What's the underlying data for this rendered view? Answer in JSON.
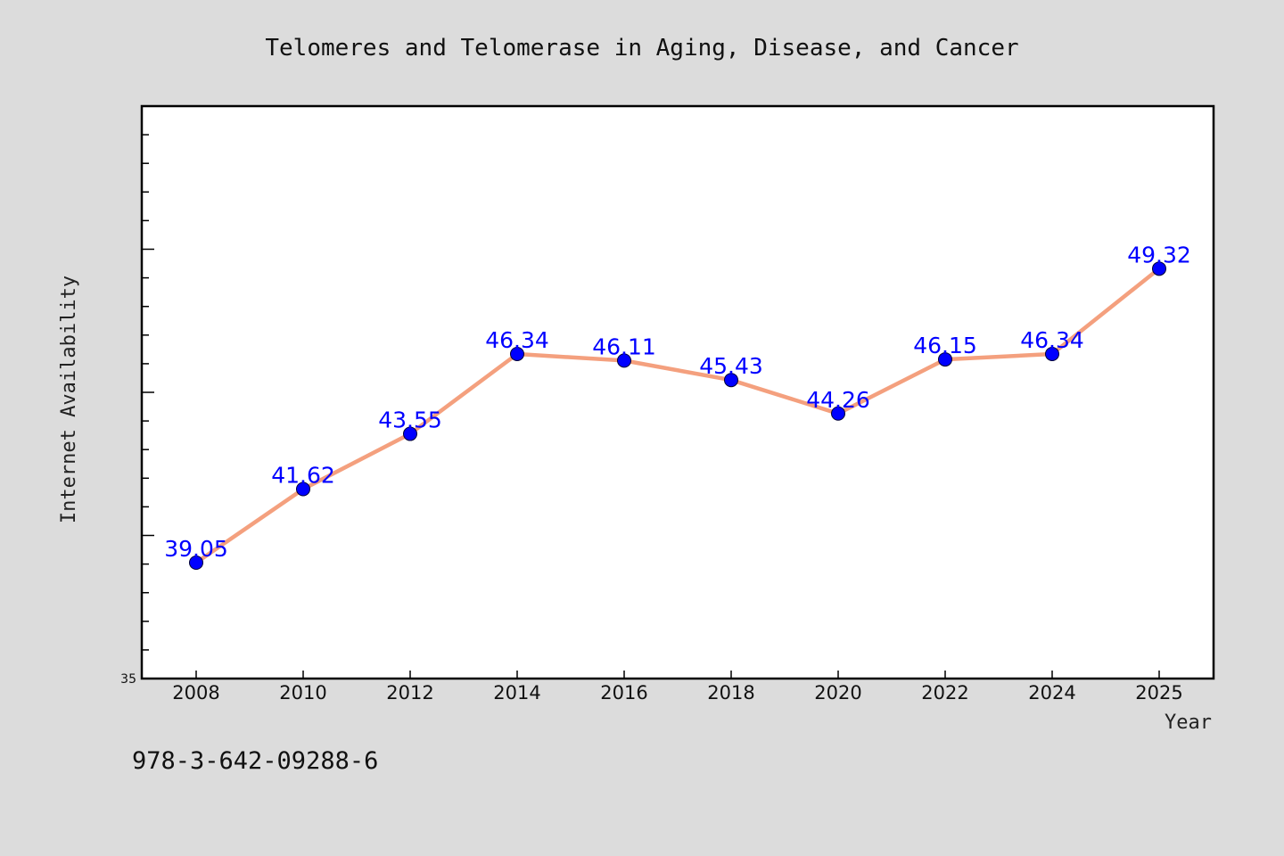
{
  "chart_data": {
    "type": "line",
    "title": "Telomeres and Telomerase in Aging, Disease, and Cancer",
    "xlabel": "Year",
    "ylabel": "Internet Availability",
    "categories": [
      "2008",
      "2010",
      "2012",
      "2014",
      "2016",
      "2018",
      "2020",
      "2022",
      "2024",
      "2025"
    ],
    "series": [
      {
        "values": [
          39.05,
          41.62,
          43.55,
          46.34,
          46.11,
          45.43,
          44.26,
          46.15,
          46.34,
          49.32
        ],
        "data_labels": [
          "39.05",
          "41.62",
          "43.55",
          "46.34",
          "46.11",
          "45.43",
          "44.26",
          "46.15",
          "46.34",
          "49.32"
        ]
      }
    ],
    "ylim": [
      35,
      55
    ],
    "y_min_label": "35",
    "line_color": "#f4a07e",
    "marker_color": "#0000ff",
    "label_color": "#0000ff",
    "grid": false,
    "legend": "none"
  },
  "footer": {
    "isbn": "978-3-642-09288-6"
  },
  "colors": {
    "background": "#dcdcdc",
    "plot_background": "#ffffff",
    "axis": "#000000"
  }
}
